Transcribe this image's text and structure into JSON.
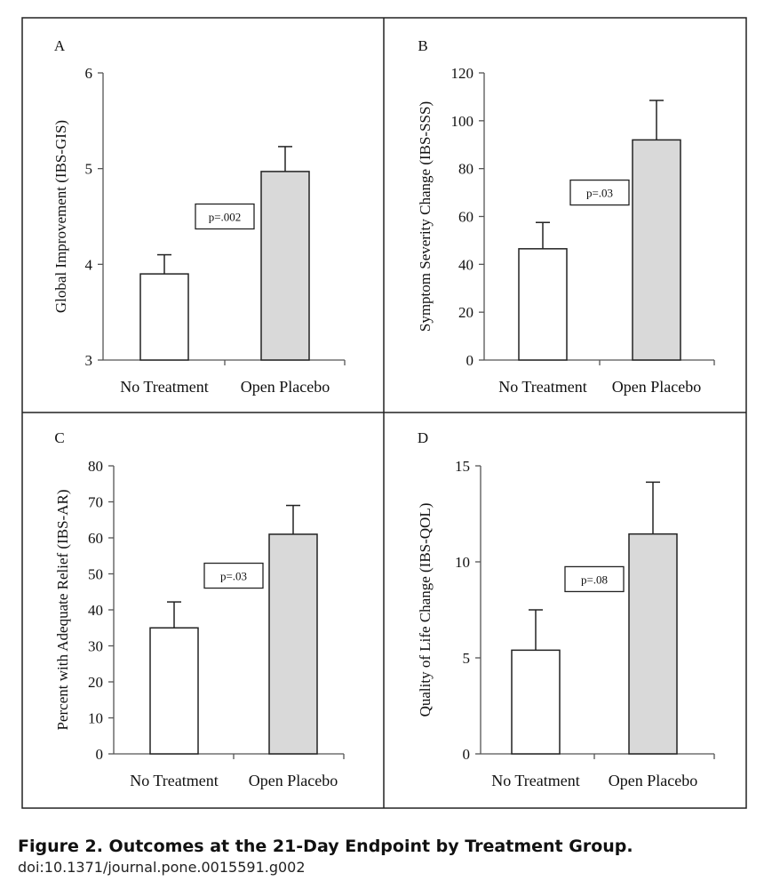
{
  "caption": {
    "title": "Figure 2. Outcomes at the 21-Day Endpoint by Treatment Group.",
    "doi": "doi:10.1371/journal.pone.0015591.g002"
  },
  "chart_data": [
    {
      "panel": "A",
      "type": "bar",
      "categories": [
        "No Treatment",
        "Open Placebo"
      ],
      "values": [
        3.9,
        4.97
      ],
      "error_upper": [
        4.1,
        5.23
      ],
      "ylabel": "Global Improvement (IBS-GIS)",
      "ylim": [
        3,
        6
      ],
      "yticks": [
        3,
        4,
        5,
        6
      ],
      "annotation": "p=.002",
      "annotation_pos": [
        0.5,
        4.5
      ],
      "bar_colors": [
        "#ffffff",
        "#d9d9d9"
      ]
    },
    {
      "panel": "B",
      "type": "bar",
      "categories": [
        "No Treatment",
        "Open Placebo"
      ],
      "values": [
        46.5,
        92
      ],
      "error_upper": [
        57.5,
        108.5
      ],
      "ylabel": "Symptom Severity Change (IBS-SSS)",
      "ylim": [
        0,
        120
      ],
      "yticks": [
        0,
        20,
        40,
        60,
        80,
        100,
        120
      ],
      "annotation": "p=.03",
      "annotation_pos": [
        0.5,
        70
      ],
      "bar_colors": [
        "#ffffff",
        "#d9d9d9"
      ]
    },
    {
      "panel": "C",
      "type": "bar",
      "categories": [
        "No Treatment",
        "Open Placebo"
      ],
      "values": [
        35,
        61
      ],
      "error_upper": [
        42.2,
        69
      ],
      "ylabel": "Percent with Adequate Relief (IBS-AR)",
      "ylim": [
        0,
        80
      ],
      "yticks": [
        0,
        10,
        20,
        30,
        40,
        50,
        60,
        70,
        80
      ],
      "annotation": "p=.03",
      "annotation_pos": [
        0.5,
        49.5
      ],
      "bar_colors": [
        "#ffffff",
        "#d9d9d9"
      ]
    },
    {
      "panel": "D",
      "type": "bar",
      "categories": [
        "No Treatment",
        "Open Placebo"
      ],
      "values": [
        5.4,
        11.45
      ],
      "error_upper": [
        7.5,
        14.15
      ],
      "ylabel": "Quality of Life Change (IBS-QOL)",
      "ylim": [
        0,
        15
      ],
      "yticks": [
        0,
        5,
        10,
        15
      ],
      "annotation": "p=.08",
      "annotation_pos": [
        0.5,
        9.1
      ],
      "bar_colors": [
        "#ffffff",
        "#d9d9d9"
      ]
    }
  ]
}
